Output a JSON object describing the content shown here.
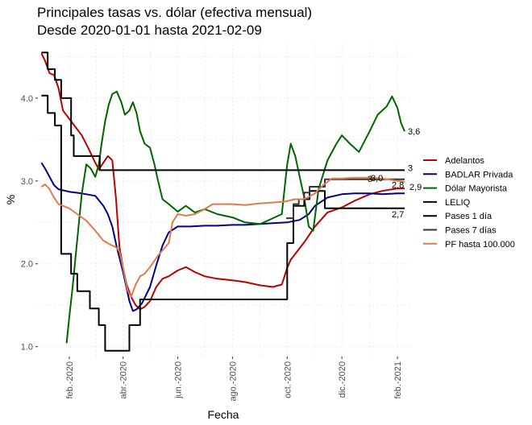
{
  "chart_data": {
    "type": "line",
    "title": "Principales tasas vs. dólar (efectiva mensual)",
    "subtitle": "Desde 2020-01-01 hasta 2021-02-09",
    "xlabel": "Fecha",
    "ylabel": "%",
    "x_range": [
      "2020-01-01",
      "2021-02-09"
    ],
    "x_ticks": [
      {
        "date": "2020-02-01",
        "label": "feb.-2020"
      },
      {
        "date": "2020-04-01",
        "label": "abr.-2020"
      },
      {
        "date": "2020-06-01",
        "label": "jun.-2020"
      },
      {
        "date": "2020-08-01",
        "label": "ago.-2020"
      },
      {
        "date": "2020-10-01",
        "label": "oct.-2020"
      },
      {
        "date": "2020-12-01",
        "label": "dic.-2020"
      },
      {
        "date": "2021-02-01",
        "label": "feb.-2021"
      }
    ],
    "ylim": [
      0.88,
      4.65
    ],
    "y_ticks": [
      {
        "value": 1.0,
        "label": "1.0"
      },
      {
        "value": 2.0,
        "label": "2.0"
      },
      {
        "value": 3.0,
        "label": "3.0"
      },
      {
        "value": 4.0,
        "label": "4.0"
      }
    ],
    "grid": true,
    "legend_position": "right",
    "series": [
      {
        "name": "Adelantos",
        "color": "#bb0000",
        "shape": "line",
        "end_label": "2,9",
        "points": [
          [
            "2020-01-01",
            4.54
          ],
          [
            "2020-01-05",
            4.45
          ],
          [
            "2020-01-10",
            4.3
          ],
          [
            "2020-01-15",
            4.28
          ],
          [
            "2020-01-20",
            4.12
          ],
          [
            "2020-01-25",
            3.85
          ],
          [
            "2020-02-01",
            3.75
          ],
          [
            "2020-02-08",
            3.65
          ],
          [
            "2020-02-15",
            3.55
          ],
          [
            "2020-02-22",
            3.4
          ],
          [
            "2020-03-01",
            3.22
          ],
          [
            "2020-03-05",
            3.14
          ],
          [
            "2020-03-10",
            3.22
          ],
          [
            "2020-03-15",
            3.3
          ],
          [
            "2020-03-20",
            3.25
          ],
          [
            "2020-03-24",
            2.8
          ],
          [
            "2020-03-28",
            2.2
          ],
          [
            "2020-04-01",
            1.95
          ],
          [
            "2020-04-05",
            1.75
          ],
          [
            "2020-04-10",
            1.6
          ],
          [
            "2020-04-15",
            1.5
          ],
          [
            "2020-04-20",
            1.45
          ],
          [
            "2020-04-25",
            1.48
          ],
          [
            "2020-05-01",
            1.55
          ],
          [
            "2020-05-08",
            1.72
          ],
          [
            "2020-05-15",
            1.82
          ],
          [
            "2020-05-22",
            1.85
          ],
          [
            "2020-06-01",
            1.92
          ],
          [
            "2020-06-10",
            1.96
          ],
          [
            "2020-06-20",
            1.9
          ],
          [
            "2020-07-01",
            1.85
          ],
          [
            "2020-07-15",
            1.82
          ],
          [
            "2020-08-01",
            1.8
          ],
          [
            "2020-08-15",
            1.78
          ],
          [
            "2020-09-01",
            1.74
          ],
          [
            "2020-09-15",
            1.72
          ],
          [
            "2020-09-25",
            1.75
          ],
          [
            "2020-10-01",
            1.95
          ],
          [
            "2020-10-05",
            2.05
          ],
          [
            "2020-10-10",
            2.12
          ],
          [
            "2020-10-20",
            2.26
          ],
          [
            "2020-11-01",
            2.45
          ],
          [
            "2020-11-15",
            2.62
          ],
          [
            "2020-12-01",
            2.68
          ],
          [
            "2020-12-15",
            2.76
          ],
          [
            "2021-01-01",
            2.84
          ],
          [
            "2021-01-15",
            2.88
          ],
          [
            "2021-02-01",
            2.91
          ],
          [
            "2021-02-09",
            2.91
          ]
        ]
      },
      {
        "name": "BADLAR Privada",
        "color": "#00008b",
        "shape": "line",
        "end_label": "2,8",
        "points": [
          [
            "2020-01-01",
            3.22
          ],
          [
            "2020-01-05",
            3.15
          ],
          [
            "2020-01-10",
            3.05
          ],
          [
            "2020-01-15",
            2.95
          ],
          [
            "2020-01-20",
            2.9
          ],
          [
            "2020-02-01",
            2.87
          ],
          [
            "2020-02-15",
            2.85
          ],
          [
            "2020-03-01",
            2.82
          ],
          [
            "2020-03-10",
            2.7
          ],
          [
            "2020-03-15",
            2.6
          ],
          [
            "2020-03-20",
            2.45
          ],
          [
            "2020-03-25",
            2.2
          ],
          [
            "2020-04-01",
            1.9
          ],
          [
            "2020-04-08",
            1.55
          ],
          [
            "2020-04-12",
            1.43
          ],
          [
            "2020-04-16",
            1.45
          ],
          [
            "2020-04-22",
            1.52
          ],
          [
            "2020-05-01",
            1.72
          ],
          [
            "2020-05-08",
            1.98
          ],
          [
            "2020-05-15",
            2.22
          ],
          [
            "2020-05-22",
            2.38
          ],
          [
            "2020-06-01",
            2.45
          ],
          [
            "2020-06-15",
            2.45
          ],
          [
            "2020-07-01",
            2.46
          ],
          [
            "2020-07-15",
            2.46
          ],
          [
            "2020-08-01",
            2.47
          ],
          [
            "2020-08-15",
            2.47
          ],
          [
            "2020-09-01",
            2.48
          ],
          [
            "2020-09-15",
            2.49
          ],
          [
            "2020-10-01",
            2.5
          ],
          [
            "2020-10-15",
            2.53
          ],
          [
            "2020-10-25",
            2.6
          ],
          [
            "2020-11-01",
            2.7
          ],
          [
            "2020-11-15",
            2.8
          ],
          [
            "2020-12-01",
            2.84
          ],
          [
            "2020-12-15",
            2.85
          ],
          [
            "2021-01-01",
            2.85
          ],
          [
            "2021-01-15",
            2.84
          ],
          [
            "2021-02-01",
            2.85
          ],
          [
            "2021-02-09",
            2.85
          ]
        ]
      },
      {
        "name": "Dólar Mayorista",
        "color": "#006400",
        "shape": "line",
        "end_label": "3,6",
        "points": [
          [
            "2020-01-29",
            1.04
          ],
          [
            "2020-02-01",
            1.35
          ],
          [
            "2020-02-05",
            1.75
          ],
          [
            "2020-02-10",
            2.3
          ],
          [
            "2020-02-15",
            2.85
          ],
          [
            "2020-02-20",
            3.2
          ],
          [
            "2020-02-25",
            3.15
          ],
          [
            "2020-03-01",
            3.05
          ],
          [
            "2020-03-05",
            3.2
          ],
          [
            "2020-03-08",
            3.45
          ],
          [
            "2020-03-12",
            3.72
          ],
          [
            "2020-03-16",
            3.92
          ],
          [
            "2020-03-20",
            4.05
          ],
          [
            "2020-03-25",
            4.08
          ],
          [
            "2020-03-30",
            3.95
          ],
          [
            "2020-04-03",
            3.8
          ],
          [
            "2020-04-08",
            3.85
          ],
          [
            "2020-04-12",
            3.95
          ],
          [
            "2020-04-16",
            3.82
          ],
          [
            "2020-04-20",
            3.6
          ],
          [
            "2020-04-25",
            3.45
          ],
          [
            "2020-05-01",
            3.4
          ],
          [
            "2020-05-06",
            3.2
          ],
          [
            "2020-05-10",
            3.0
          ],
          [
            "2020-05-15",
            2.78
          ],
          [
            "2020-05-22",
            2.72
          ],
          [
            "2020-06-01",
            2.63
          ],
          [
            "2020-06-10",
            2.7
          ],
          [
            "2020-06-20",
            2.62
          ],
          [
            "2020-07-01",
            2.66
          ],
          [
            "2020-07-15",
            2.6
          ],
          [
            "2020-08-01",
            2.56
          ],
          [
            "2020-08-15",
            2.5
          ],
          [
            "2020-09-01",
            2.48
          ],
          [
            "2020-09-15",
            2.55
          ],
          [
            "2020-09-25",
            2.6
          ],
          [
            "2020-10-01",
            3.2
          ],
          [
            "2020-10-05",
            3.45
          ],
          [
            "2020-10-10",
            3.3
          ],
          [
            "2020-10-15",
            3.05
          ],
          [
            "2020-10-20",
            2.8
          ],
          [
            "2020-10-25",
            2.45
          ],
          [
            "2020-10-30",
            2.4
          ],
          [
            "2020-11-05",
            2.9
          ],
          [
            "2020-11-15",
            3.25
          ],
          [
            "2020-11-25",
            3.45
          ],
          [
            "2020-12-01",
            3.55
          ],
          [
            "2020-12-10",
            3.45
          ],
          [
            "2020-12-20",
            3.35
          ],
          [
            "2021-01-01",
            3.6
          ],
          [
            "2021-01-10",
            3.8
          ],
          [
            "2021-01-20",
            3.9
          ],
          [
            "2021-01-26",
            4.02
          ],
          [
            "2021-02-01",
            3.88
          ],
          [
            "2021-02-05",
            3.7
          ],
          [
            "2021-02-09",
            3.6
          ]
        ]
      },
      {
        "name": "LELIQ",
        "color": "#000000",
        "shape": "step",
        "end_label": "3",
        "points": [
          [
            "2020-01-01",
            4.55
          ],
          [
            "2020-01-08",
            4.35
          ],
          [
            "2020-01-16",
            4.22
          ],
          [
            "2020-01-23",
            4.0
          ],
          [
            "2020-02-03",
            3.55
          ],
          [
            "2020-02-06",
            3.3
          ],
          [
            "2020-03-06",
            3.13
          ],
          [
            "2021-02-09",
            3.13
          ]
        ]
      },
      {
        "name": "Pases 1 día",
        "color": "#000000",
        "shape": "step",
        "end_label": "2,7",
        "points": [
          [
            "2020-01-01",
            4.03
          ],
          [
            "2020-01-08",
            3.82
          ],
          [
            "2020-01-16",
            3.67
          ],
          [
            "2020-01-23",
            2.12
          ],
          [
            "2020-02-03",
            1.88
          ],
          [
            "2020-02-10",
            1.67
          ],
          [
            "2020-02-24",
            1.46
          ],
          [
            "2020-03-05",
            1.26
          ],
          [
            "2020-03-12",
            0.95
          ],
          [
            "2020-04-08",
            1.26
          ],
          [
            "2020-04-20",
            1.57
          ],
          [
            "2020-05-22",
            1.57
          ],
          [
            "2020-09-30",
            1.57
          ],
          [
            "2020-10-01",
            2.25
          ],
          [
            "2020-10-08",
            2.7
          ],
          [
            "2020-10-14",
            2.7
          ],
          [
            "2020-10-20",
            2.78
          ],
          [
            "2020-10-26",
            2.88
          ],
          [
            "2020-11-12",
            2.67
          ],
          [
            "2021-02-09",
            2.67
          ]
        ]
      },
      {
        "name": "Pases 7 días",
        "color": "#333333",
        "shape": "step",
        "end_label": "3",
        "points": [
          [
            "2020-09-30",
            2.55
          ],
          [
            "2020-10-08",
            2.72
          ],
          [
            "2020-10-14",
            2.78
          ],
          [
            "2020-10-20",
            2.86
          ],
          [
            "2020-10-26",
            2.93
          ],
          [
            "2020-11-12",
            3.02
          ],
          [
            "2021-02-09",
            3.02
          ]
        ]
      },
      {
        "name": "PF hasta 100.000",
        "color": "#e07b4f",
        "shape": "line",
        "end_label": "3,0",
        "points": [
          [
            "2020-01-01",
            2.93
          ],
          [
            "2020-01-05",
            2.96
          ],
          [
            "2020-01-10",
            2.9
          ],
          [
            "2020-01-15",
            2.8
          ],
          [
            "2020-01-20",
            2.72
          ],
          [
            "2020-02-01",
            2.67
          ],
          [
            "2020-02-10",
            2.6
          ],
          [
            "2020-02-20",
            2.52
          ],
          [
            "2020-03-01",
            2.4
          ],
          [
            "2020-03-10",
            2.28
          ],
          [
            "2020-03-18",
            2.23
          ],
          [
            "2020-03-24",
            2.2
          ],
          [
            "2020-03-28",
            2.15
          ],
          [
            "2020-04-01",
            1.95
          ],
          [
            "2020-04-06",
            1.68
          ],
          [
            "2020-04-10",
            1.6
          ],
          [
            "2020-04-15",
            1.75
          ],
          [
            "2020-04-20",
            1.85
          ],
          [
            "2020-04-25",
            1.88
          ],
          [
            "2020-05-01",
            1.96
          ],
          [
            "2020-05-10",
            2.1
          ],
          [
            "2020-05-18",
            2.2
          ],
          [
            "2020-05-22",
            2.25
          ],
          [
            "2020-05-26",
            2.5
          ],
          [
            "2020-06-01",
            2.6
          ],
          [
            "2020-06-10",
            2.58
          ],
          [
            "2020-06-20",
            2.6
          ],
          [
            "2020-07-01",
            2.66
          ],
          [
            "2020-07-10",
            2.72
          ],
          [
            "2020-08-01",
            2.72
          ],
          [
            "2020-08-15",
            2.71
          ],
          [
            "2020-09-01",
            2.73
          ],
          [
            "2020-09-15",
            2.74
          ],
          [
            "2020-09-28",
            2.75
          ],
          [
            "2020-10-10",
            2.78
          ],
          [
            "2020-10-20",
            2.78
          ],
          [
            "2020-11-01",
            2.85
          ],
          [
            "2020-11-10",
            2.95
          ],
          [
            "2020-11-20",
            3.03
          ],
          [
            "2020-12-01",
            3.03
          ],
          [
            "2020-12-15",
            3.04
          ],
          [
            "2021-01-01",
            3.04
          ],
          [
            "2021-01-15",
            3.03
          ],
          [
            "2021-02-01",
            3.0
          ],
          [
            "2021-02-09",
            2.99
          ]
        ]
      }
    ]
  }
}
